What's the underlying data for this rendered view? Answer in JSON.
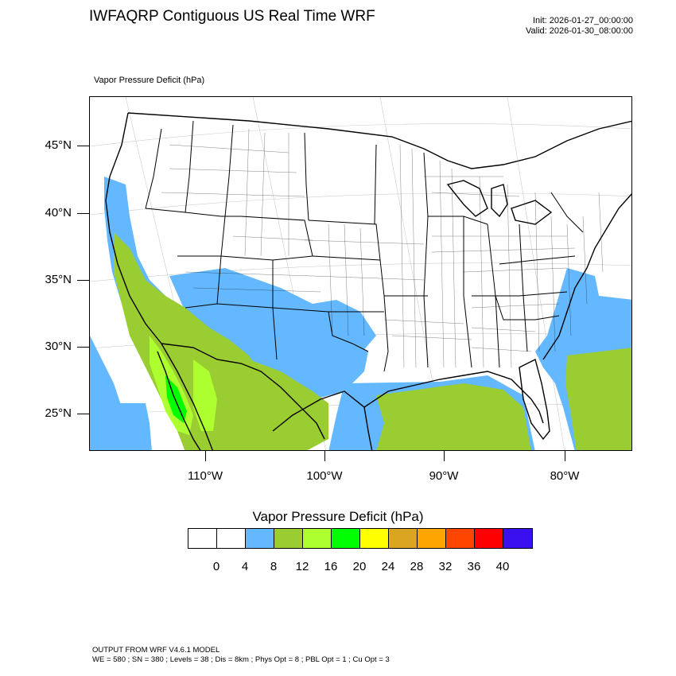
{
  "header": {
    "title": "IWFAQRP Contiguous US Real Time WRF",
    "init": "Init: 2026-01-27_00:00:00",
    "valid": "Valid: 2026-01-30_08:00:00",
    "field_label": "Vapor Pressure Deficit   (hPa)"
  },
  "map": {
    "lat_labels": [
      "45°N",
      "40°N",
      "35°N",
      "30°N",
      "25°N"
    ],
    "lon_labels": [
      "110°W",
      "100°W",
      "90°W",
      "80°W"
    ],
    "colors": {
      "land": "#ffffff",
      "vpd_4_8": "#63b8ff",
      "vpd_8_12": "#9acd32",
      "vpd_12_16": "#adff2f",
      "vpd_16_20": "#00ff00",
      "boundaries": "#000000"
    }
  },
  "colorbar": {
    "title": "Vapor Pressure Deficit  (hPa)",
    "labels": [
      "0",
      "4",
      "8",
      "12",
      "16",
      "20",
      "24",
      "28",
      "32",
      "36",
      "40"
    ],
    "colors": [
      "#ffffff",
      "#ffffff",
      "#63b8ff",
      "#9acd32",
      "#adff2f",
      "#00ff00",
      "#ffff00",
      "#daa520",
      "#ffa500",
      "#ff4500",
      "#ff0000",
      "#3a10f0"
    ]
  },
  "footer": {
    "line1": "OUTPUT FROM WRF V4.6.1 MODEL",
    "line2": "WE = 580 ; SN = 380 ; Levels = 38 ; Dis = 8km ; Phys Opt = 8 ; PBL Opt = 1 ; Cu Opt = 3"
  }
}
